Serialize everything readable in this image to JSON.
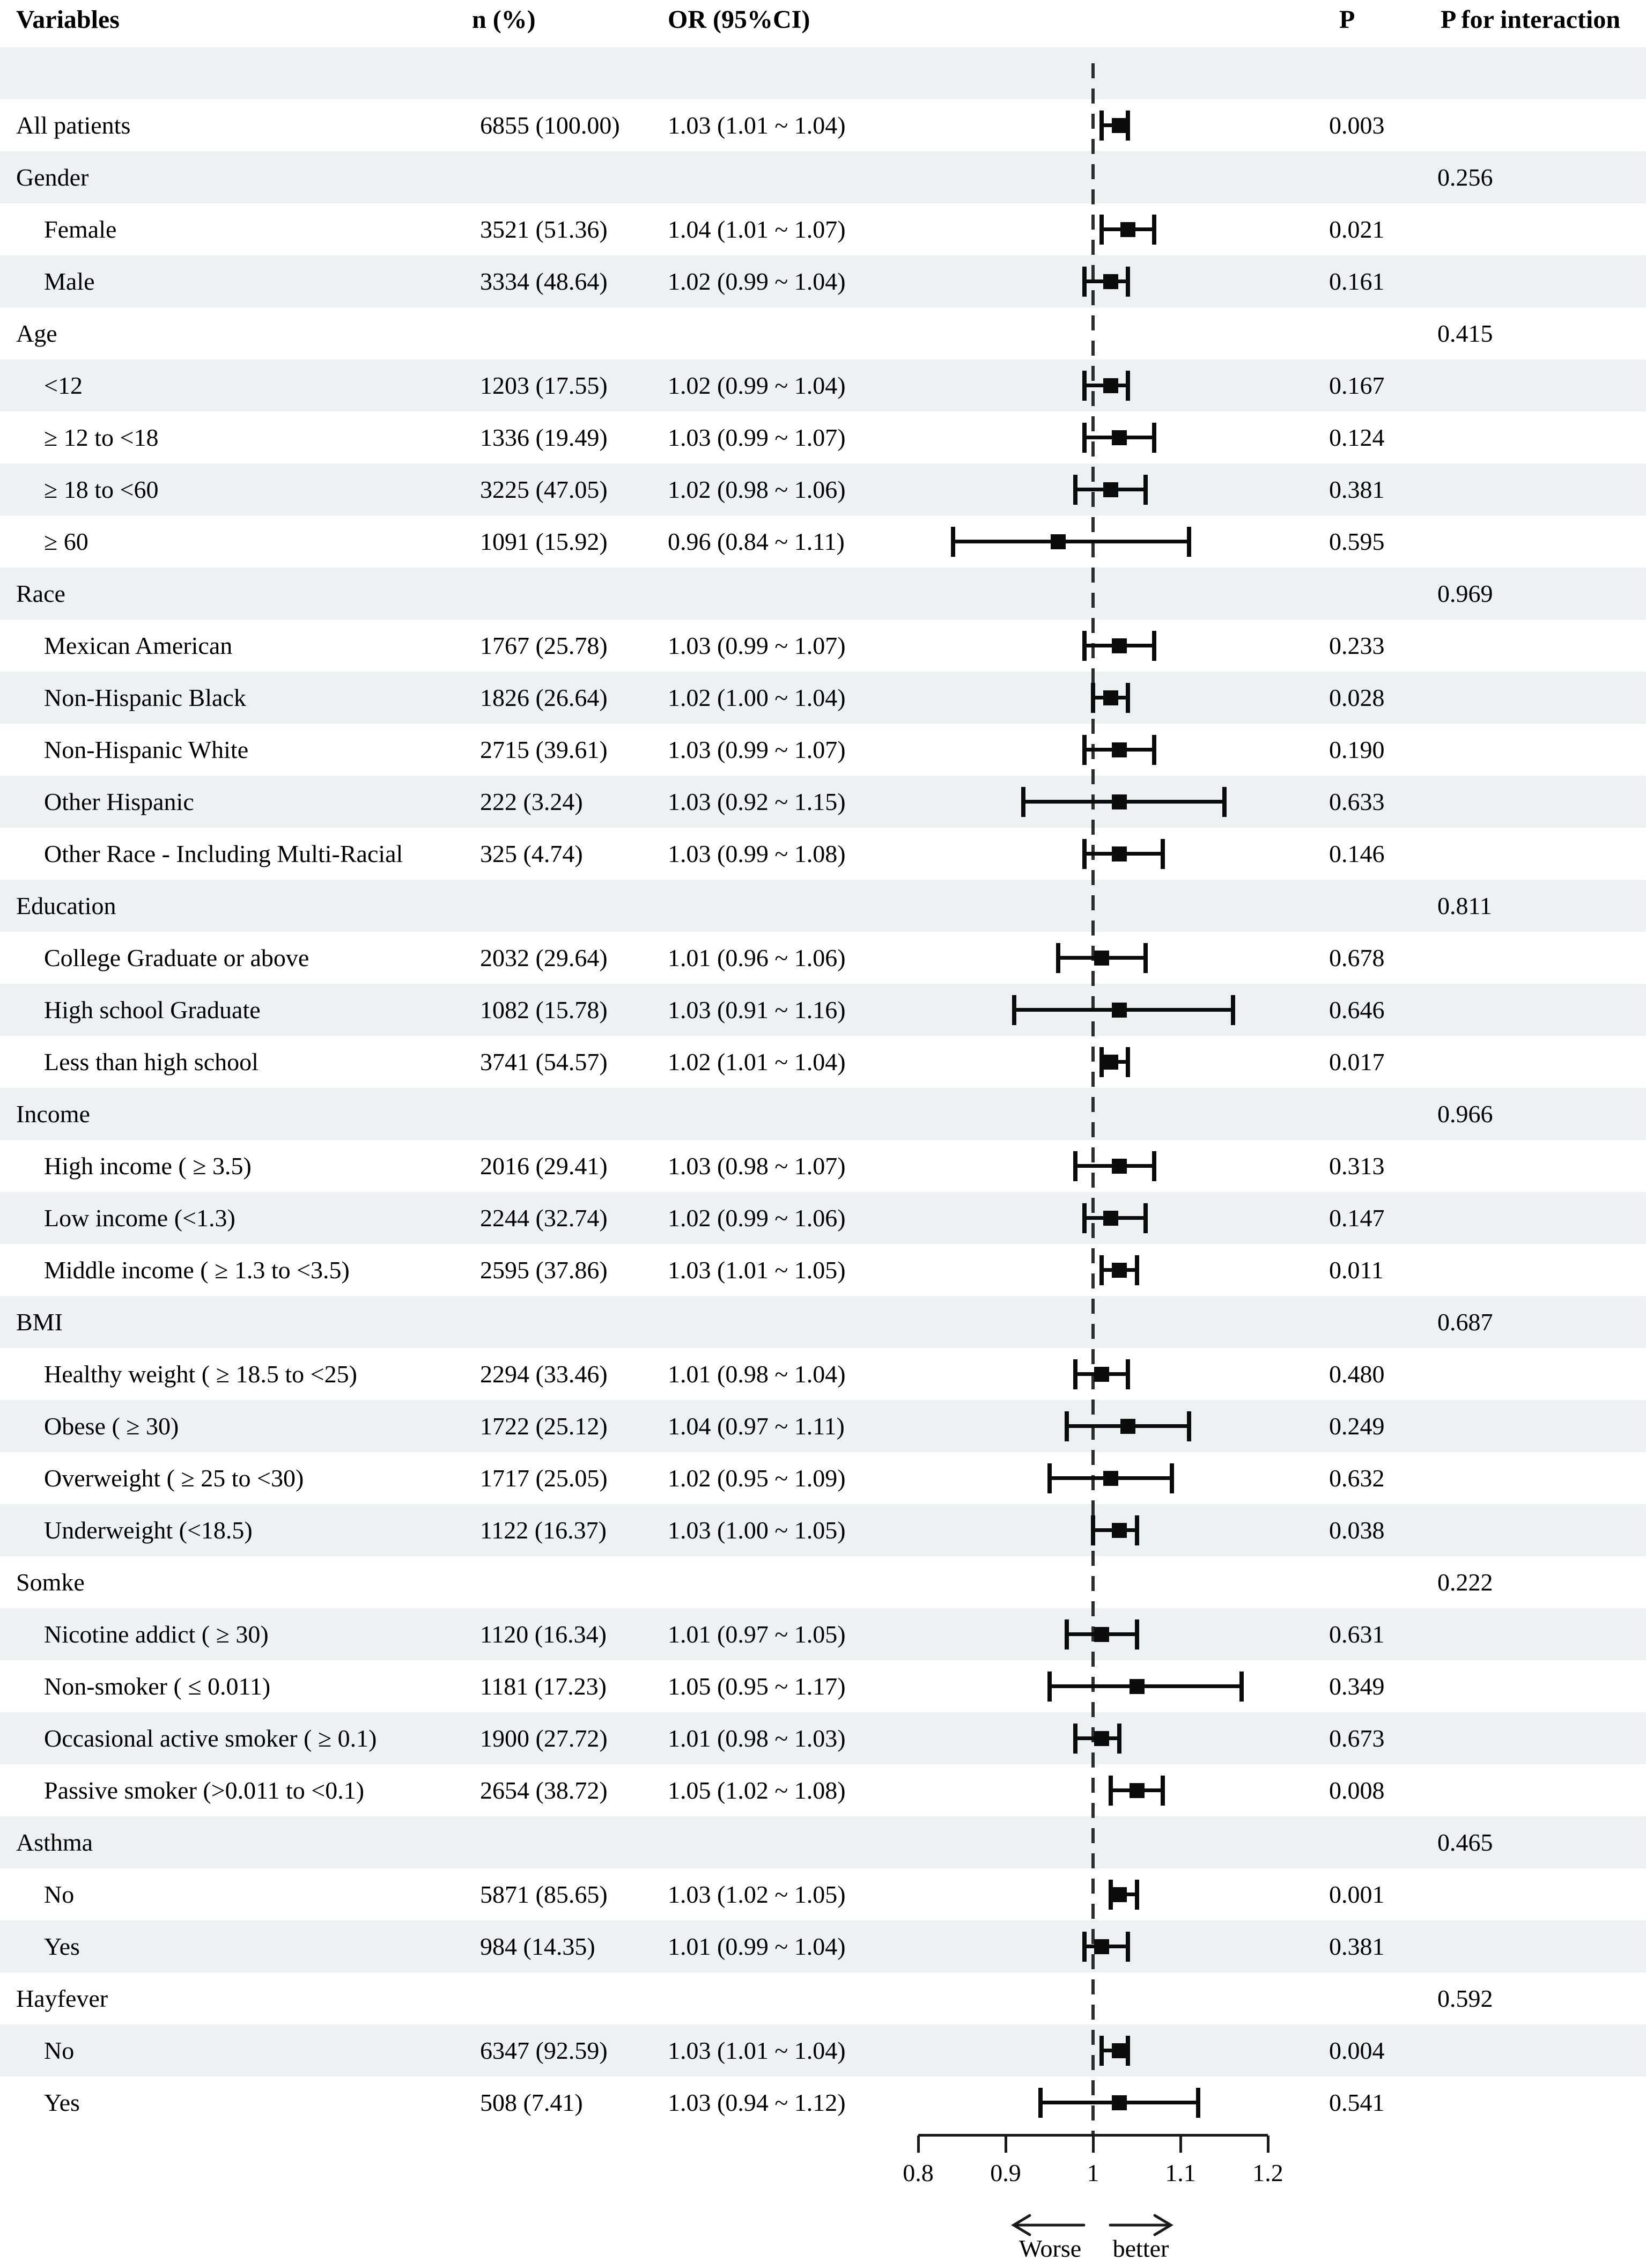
{
  "columns": {
    "variables": "Variables",
    "n": "n (%)",
    "or": "OR (95%CI)",
    "p": "P",
    "p_interaction": "P for interaction"
  },
  "colors": {
    "band": "#edf1f1",
    "ink": "#0b0b0b",
    "reference_dash": "#2c2c2c"
  },
  "chart_data": {
    "type": "forest",
    "x_axis": {
      "range": [
        0.8,
        1.2
      ],
      "ticks": [
        {
          "value": 0.8,
          "label": "0.8"
        },
        {
          "value": 0.9,
          "label": "0.9"
        },
        {
          "value": 1.0,
          "label": "1"
        },
        {
          "value": 1.1,
          "label": "1.1"
        },
        {
          "value": 1.2,
          "label": "1.2"
        }
      ],
      "reference_line": 1.0,
      "direction_labels": {
        "left": "Worse",
        "right": "better"
      }
    },
    "rows": [
      {
        "type": "spacer",
        "label": ""
      },
      {
        "type": "item",
        "indent": 0,
        "label": "All patients",
        "n_pct": "6855 (100.00)",
        "or_text": "1.03 (1.01 ~ 1.04)",
        "or": 1.03,
        "ci_low": 1.01,
        "ci_high": 1.04,
        "p": "0.003"
      },
      {
        "type": "group",
        "indent": 0,
        "label": "Gender",
        "p_interaction": "0.256"
      },
      {
        "type": "item",
        "indent": 1,
        "label": "Female",
        "n_pct": "3521 (51.36)",
        "or_text": "1.04 (1.01 ~ 1.07)",
        "or": 1.04,
        "ci_low": 1.01,
        "ci_high": 1.07,
        "p": "0.021"
      },
      {
        "type": "item",
        "indent": 1,
        "label": "Male",
        "n_pct": "3334 (48.64)",
        "or_text": "1.02 (0.99 ~ 1.04)",
        "or": 1.02,
        "ci_low": 0.99,
        "ci_high": 1.04,
        "p": "0.161"
      },
      {
        "type": "group",
        "indent": 0,
        "label": "Age",
        "p_interaction": "0.415"
      },
      {
        "type": "item",
        "indent": 1,
        "label": "<12",
        "n_pct": "1203 (17.55)",
        "or_text": "1.02 (0.99 ~ 1.04)",
        "or": 1.02,
        "ci_low": 0.99,
        "ci_high": 1.04,
        "p": "0.167"
      },
      {
        "type": "item",
        "indent": 1,
        "label": "≥ 12 to <18",
        "n_pct": "1336 (19.49)",
        "or_text": "1.03 (0.99 ~ 1.07)",
        "or": 1.03,
        "ci_low": 0.99,
        "ci_high": 1.07,
        "p": "0.124"
      },
      {
        "type": "item",
        "indent": 1,
        "label": "≥ 18 to <60",
        "n_pct": "3225 (47.05)",
        "or_text": "1.02 (0.98 ~ 1.06)",
        "or": 1.02,
        "ci_low": 0.98,
        "ci_high": 1.06,
        "p": "0.381"
      },
      {
        "type": "item",
        "indent": 1,
        "label": "≥ 60",
        "n_pct": "1091 (15.92)",
        "or_text": "0.96 (0.84 ~ 1.11)",
        "or": 0.96,
        "ci_low": 0.84,
        "ci_high": 1.11,
        "p": "0.595"
      },
      {
        "type": "group",
        "indent": 0,
        "label": "Race",
        "p_interaction": "0.969"
      },
      {
        "type": "item",
        "indent": 1,
        "label": "Mexican American",
        "n_pct": "1767 (25.78)",
        "or_text": "1.03 (0.99 ~ 1.07)",
        "or": 1.03,
        "ci_low": 0.99,
        "ci_high": 1.07,
        "p": "0.233"
      },
      {
        "type": "item",
        "indent": 1,
        "label": "Non-Hispanic Black",
        "n_pct": "1826 (26.64)",
        "or_text": "1.02 (1.00 ~ 1.04)",
        "or": 1.02,
        "ci_low": 1.0,
        "ci_high": 1.04,
        "p": "0.028"
      },
      {
        "type": "item",
        "indent": 1,
        "label": "Non-Hispanic White",
        "n_pct": "2715 (39.61)",
        "or_text": "1.03 (0.99 ~ 1.07)",
        "or": 1.03,
        "ci_low": 0.99,
        "ci_high": 1.07,
        "p": "0.190"
      },
      {
        "type": "item",
        "indent": 1,
        "label": "Other Hispanic",
        "n_pct": "222 (3.24)",
        "or_text": "1.03 (0.92 ~ 1.15)",
        "or": 1.03,
        "ci_low": 0.92,
        "ci_high": 1.15,
        "p": "0.633"
      },
      {
        "type": "item",
        "indent": 1,
        "label": "Other Race - Including Multi-Racial",
        "n_pct": "325 (4.74)",
        "or_text": "1.03 (0.99 ~ 1.08)",
        "or": 1.03,
        "ci_low": 0.99,
        "ci_high": 1.08,
        "p": "0.146"
      },
      {
        "type": "group",
        "indent": 0,
        "label": "Education",
        "p_interaction": "0.811"
      },
      {
        "type": "item",
        "indent": 1,
        "label": "College Graduate or above",
        "n_pct": "2032 (29.64)",
        "or_text": "1.01 (0.96 ~ 1.06)",
        "or": 1.01,
        "ci_low": 0.96,
        "ci_high": 1.06,
        "p": "0.678"
      },
      {
        "type": "item",
        "indent": 1,
        "label": "High school Graduate",
        "n_pct": "1082 (15.78)",
        "or_text": "1.03 (0.91 ~ 1.16)",
        "or": 1.03,
        "ci_low": 0.91,
        "ci_high": 1.16,
        "p": "0.646"
      },
      {
        "type": "item",
        "indent": 1,
        "label": "Less than high school",
        "n_pct": "3741 (54.57)",
        "or_text": "1.02 (1.01 ~ 1.04)",
        "or": 1.02,
        "ci_low": 1.01,
        "ci_high": 1.04,
        "p": "0.017"
      },
      {
        "type": "group",
        "indent": 0,
        "label": "Income",
        "p_interaction": "0.966"
      },
      {
        "type": "item",
        "indent": 1,
        "label": "High income ( ≥ 3.5)",
        "n_pct": "2016 (29.41)",
        "or_text": "1.03 (0.98 ~ 1.07)",
        "or": 1.03,
        "ci_low": 0.98,
        "ci_high": 1.07,
        "p": "0.313"
      },
      {
        "type": "item",
        "indent": 1,
        "label": "Low income (<1.3)",
        "n_pct": "2244 (32.74)",
        "or_text": "1.02 (0.99 ~ 1.06)",
        "or": 1.02,
        "ci_low": 0.99,
        "ci_high": 1.06,
        "p": "0.147"
      },
      {
        "type": "item",
        "indent": 1,
        "label": "Middle income ( ≥ 1.3 to <3.5)",
        "n_pct": "2595 (37.86)",
        "or_text": "1.03 (1.01 ~ 1.05)",
        "or": 1.03,
        "ci_low": 1.01,
        "ci_high": 1.05,
        "p": "0.011"
      },
      {
        "type": "group",
        "indent": 0,
        "label": "BMI",
        "p_interaction": "0.687"
      },
      {
        "type": "item",
        "indent": 1,
        "label": "Healthy weight ( ≥ 18.5 to <25)",
        "n_pct": "2294 (33.46)",
        "or_text": "1.01 (0.98 ~ 1.04)",
        "or": 1.01,
        "ci_low": 0.98,
        "ci_high": 1.04,
        "p": "0.480"
      },
      {
        "type": "item",
        "indent": 1,
        "label": "Obese ( ≥ 30)",
        "n_pct": "1722 (25.12)",
        "or_text": "1.04 (0.97 ~ 1.11)",
        "or": 1.04,
        "ci_low": 0.97,
        "ci_high": 1.11,
        "p": "0.249"
      },
      {
        "type": "item",
        "indent": 1,
        "label": "Overweight ( ≥ 25 to <30)",
        "n_pct": "1717 (25.05)",
        "or_text": "1.02 (0.95 ~ 1.09)",
        "or": 1.02,
        "ci_low": 0.95,
        "ci_high": 1.09,
        "p": "0.632"
      },
      {
        "type": "item",
        "indent": 1,
        "label": "Underweight (<18.5)",
        "n_pct": "1122 (16.37)",
        "or_text": "1.03 (1.00 ~ 1.05)",
        "or": 1.03,
        "ci_low": 1.0,
        "ci_high": 1.05,
        "p": "0.038"
      },
      {
        "type": "group",
        "indent": 0,
        "label": "Somke",
        "p_interaction": "0.222"
      },
      {
        "type": "item",
        "indent": 1,
        "label": "Nicotine addict ( ≥ 30)",
        "n_pct": "1120 (16.34)",
        "or_text": "1.01 (0.97 ~ 1.05)",
        "or": 1.01,
        "ci_low": 0.97,
        "ci_high": 1.05,
        "p": "0.631"
      },
      {
        "type": "item",
        "indent": 1,
        "label": "Non-smoker ( ≤ 0.011)",
        "n_pct": "1181 (17.23)",
        "or_text": "1.05 (0.95 ~ 1.17)",
        "or": 1.05,
        "ci_low": 0.95,
        "ci_high": 1.17,
        "p": "0.349"
      },
      {
        "type": "item",
        "indent": 1,
        "label": "Occasional active smoker ( ≥ 0.1)",
        "n_pct": "1900 (27.72)",
        "or_text": "1.01 (0.98 ~ 1.03)",
        "or": 1.01,
        "ci_low": 0.98,
        "ci_high": 1.03,
        "p": "0.673"
      },
      {
        "type": "item",
        "indent": 1,
        "label": "Passive smoker (>0.011 to <0.1)",
        "n_pct": "2654 (38.72)",
        "or_text": "1.05 (1.02 ~ 1.08)",
        "or": 1.05,
        "ci_low": 1.02,
        "ci_high": 1.08,
        "p": "0.008"
      },
      {
        "type": "group",
        "indent": 0,
        "label": "Asthma",
        "p_interaction": "0.465"
      },
      {
        "type": "item",
        "indent": 1,
        "label": "No",
        "n_pct": "5871 (85.65)",
        "or_text": "1.03 (1.02 ~ 1.05)",
        "or": 1.03,
        "ci_low": 1.02,
        "ci_high": 1.05,
        "p": "0.001"
      },
      {
        "type": "item",
        "indent": 1,
        "label": "Yes",
        "n_pct": "984 (14.35)",
        "or_text": "1.01 (0.99 ~ 1.04)",
        "or": 1.01,
        "ci_low": 0.99,
        "ci_high": 1.04,
        "p": "0.381"
      },
      {
        "type": "group",
        "indent": 0,
        "label": "Hayfever",
        "p_interaction": "0.592"
      },
      {
        "type": "item",
        "indent": 1,
        "label": "No",
        "n_pct": "6347 (92.59)",
        "or_text": "1.03 (1.01 ~ 1.04)",
        "or": 1.03,
        "ci_low": 1.01,
        "ci_high": 1.04,
        "p": "0.004"
      },
      {
        "type": "item",
        "indent": 1,
        "label": "Yes",
        "n_pct": "508 (7.41)",
        "or_text": "1.03 (0.94 ~ 1.12)",
        "or": 1.03,
        "ci_low": 0.94,
        "ci_high": 1.12,
        "p": "0.541"
      }
    ]
  }
}
